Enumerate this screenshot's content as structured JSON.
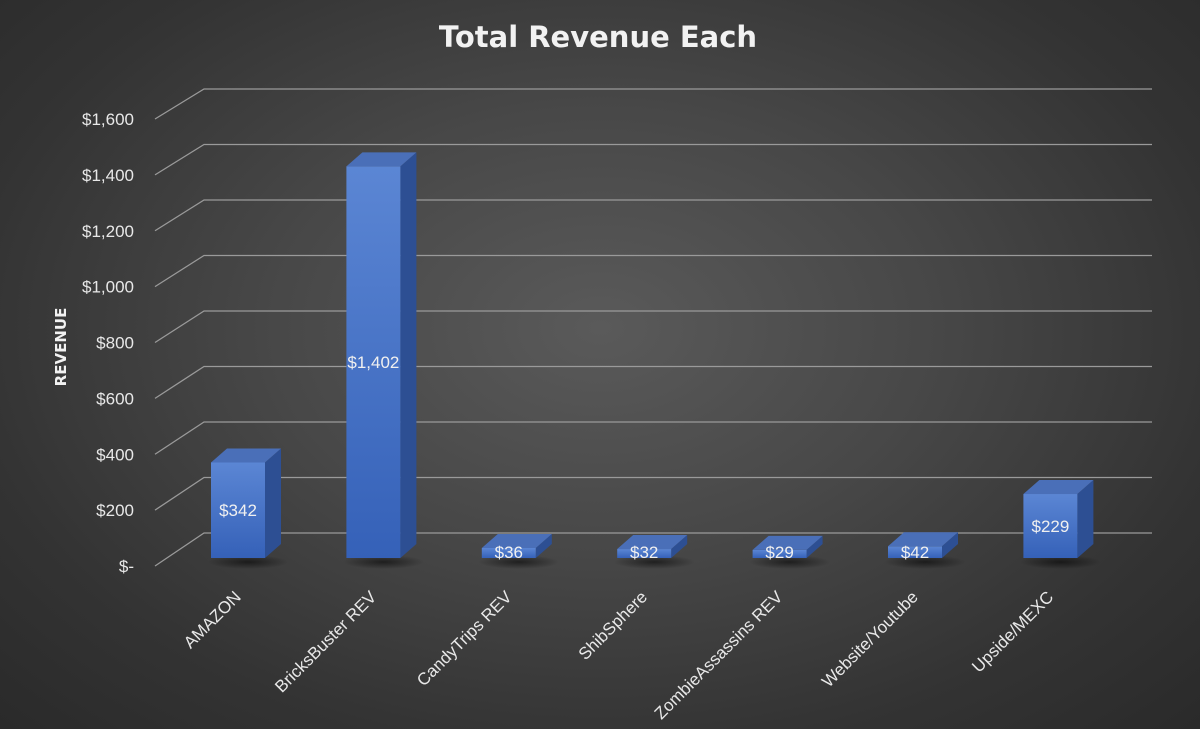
{
  "chart_data": {
    "type": "bar",
    "title": "Total Revenue Each",
    "xlabel": "",
    "ylabel": "REVENUE",
    "categories": [
      "AMAZON",
      "BricksBuster REV",
      "CandyTrips REV",
      "ShibSphere",
      "ZombieAssassins REV",
      "Website/Youtube",
      "Upside/MEXC"
    ],
    "values": [
      342,
      1402,
      36,
      32,
      29,
      42,
      229
    ],
    "data_labels": [
      "$342",
      "$1,402",
      "$36",
      "$32",
      "$29",
      "$42",
      "$229"
    ],
    "ylim": [
      0,
      1600
    ],
    "yticks": [
      0,
      200,
      400,
      600,
      800,
      1000,
      1200,
      1400,
      1600
    ],
    "ytick_labels": [
      "$-",
      "$200",
      "$400",
      "$600",
      "$800",
      "$1,000",
      "$1,200",
      "$1,400",
      "$1,600"
    ],
    "grid": true,
    "legend": "none",
    "style": "3d-column",
    "bar_color": "#4472c4"
  }
}
